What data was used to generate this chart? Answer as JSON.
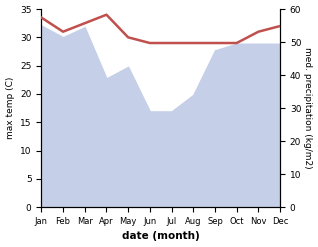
{
  "months": [
    "Jan",
    "Feb",
    "Mar",
    "Apr",
    "May",
    "Jun",
    "Jul",
    "Aug",
    "Sep",
    "Oct",
    "Nov",
    "Dec"
  ],
  "temperature": [
    33.5,
    31.0,
    32.5,
    34.0,
    30.0,
    29.0,
    29.0,
    29.0,
    29.0,
    29.0,
    31.0,
    32.0
  ],
  "precipitation": [
    55.0,
    51.5,
    54.5,
    39.0,
    42.5,
    29.0,
    29.0,
    34.0,
    47.5,
    49.5,
    49.5,
    49.5
  ],
  "temp_color": "#c0504d",
  "precip_color": "#c5cfe8",
  "ylabel_left": "max temp (C)",
  "ylabel_right": "med. precipitation (kg/m2)",
  "xlabel": "date (month)",
  "ylim_left": [
    0,
    35
  ],
  "ylim_right": [
    0,
    60
  ],
  "yticks_left": [
    0,
    5,
    10,
    15,
    20,
    25,
    30,
    35
  ],
  "yticks_right": [
    0,
    10,
    20,
    30,
    40,
    50,
    60
  ],
  "temp_linewidth": 1.8,
  "fig_width": 3.18,
  "fig_height": 2.47,
  "dpi": 100
}
